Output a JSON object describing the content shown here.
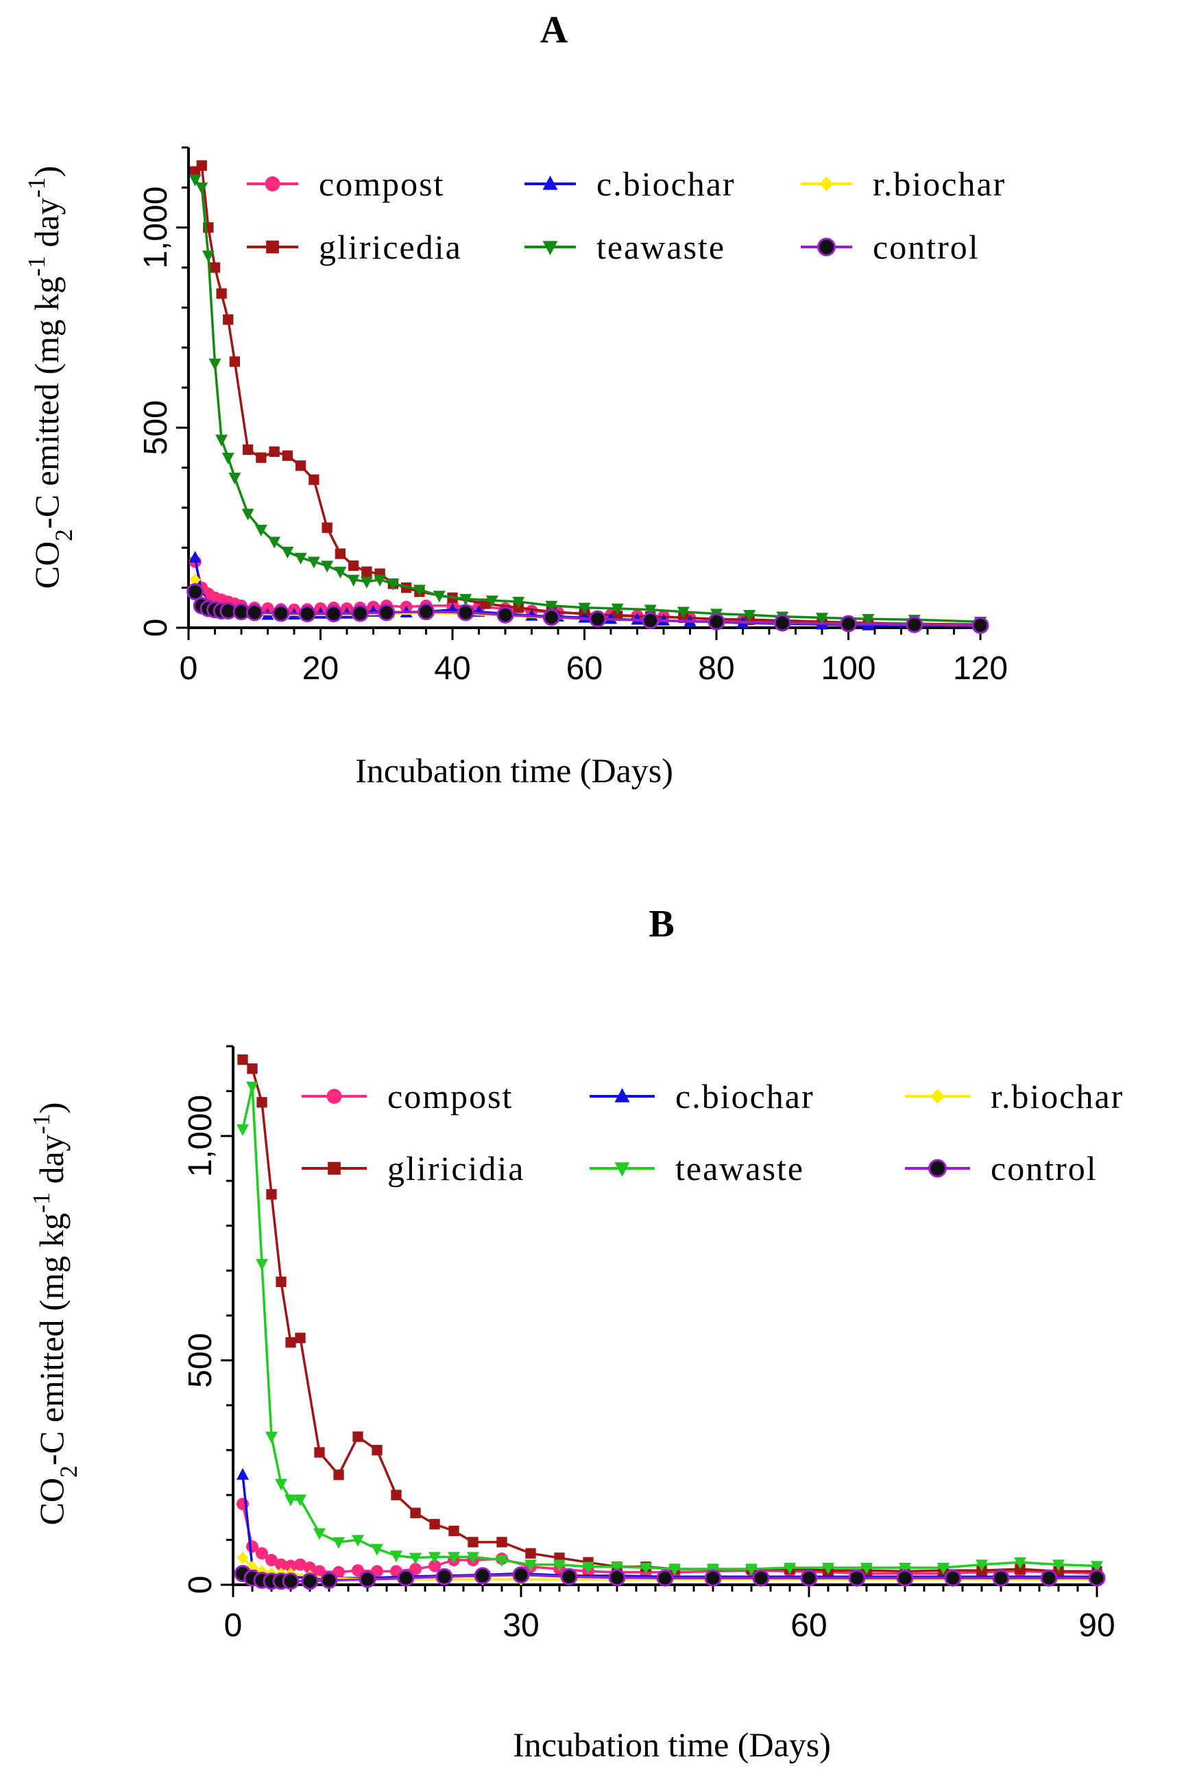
{
  "chart_data": [
    {
      "type": "line",
      "title": "A",
      "xlabel": "Incubation time   (Days)",
      "ylabel": "CO2-C emitted (mg kg-1 day-1)",
      "ylabel_parts": {
        "a": "CO",
        "sub": "2",
        "b": "-C emitted (mg kg",
        "sup1": "-1",
        "c": " day",
        "sup2": "-1",
        "d": ")"
      },
      "xlim": [
        0,
        120
      ],
      "ylim": [
        0,
        1200
      ],
      "xticks": [
        0,
        20,
        40,
        60,
        80,
        100,
        120
      ],
      "xtick_labels": [
        "0",
        "20",
        "40",
        "60",
        "80",
        "100",
        "120"
      ],
      "yticks": [
        0,
        500,
        1000
      ],
      "ytick_labels": [
        "0",
        "500",
        "1,000"
      ],
      "legend_position": "top",
      "series": [
        {
          "name": "compost",
          "color": "#ff2a7f",
          "marker": "circle",
          "x": [
            1,
            2,
            3,
            4,
            5,
            6,
            7,
            8,
            10,
            12,
            14,
            16,
            18,
            20,
            22,
            24,
            26,
            28,
            30,
            33,
            36,
            40,
            44,
            48,
            52,
            56,
            60,
            64,
            68,
            72,
            76,
            80,
            84,
            90,
            96,
            103,
            110,
            120
          ],
          "y": [
            165,
            100,
            85,
            75,
            70,
            65,
            60,
            55,
            50,
            48,
            46,
            45,
            46,
            48,
            50,
            48,
            50,
            52,
            55,
            52,
            55,
            55,
            52,
            48,
            42,
            38,
            35,
            32,
            30,
            28,
            24,
            20,
            18,
            15,
            12,
            10,
            8,
            6
          ]
        },
        {
          "name": "gliricedia",
          "color": "#a01515",
          "marker": "square",
          "x": [
            1,
            2,
            3,
            4,
            5,
            6,
            7,
            9,
            11,
            13,
            15,
            17,
            19,
            21,
            23,
            25,
            27,
            29,
            31,
            33,
            35,
            40,
            45,
            50,
            55,
            60,
            65,
            70,
            75,
            80,
            85,
            90,
            96,
            103,
            110,
            120
          ],
          "y": [
            1140,
            1155,
            1000,
            900,
            835,
            770,
            665,
            445,
            425,
            440,
            430,
            405,
            370,
            250,
            185,
            155,
            140,
            135,
            110,
            100,
            90,
            75,
            60,
            50,
            40,
            35,
            30,
            28,
            25,
            22,
            20,
            18,
            15,
            12,
            10,
            8
          ]
        },
        {
          "name": "c.biochar",
          "color": "#1010e0",
          "marker": "triangle-up",
          "x": [
            1,
            2,
            3,
            4,
            5,
            6,
            7,
            8,
            10,
            12,
            14,
            16,
            18,
            20,
            22,
            24,
            26,
            28,
            30,
            33,
            36,
            40,
            44,
            48,
            52,
            56,
            60,
            64,
            68,
            72,
            76,
            80,
            84,
            90,
            96,
            103,
            110,
            120
          ],
          "y": [
            175,
            80,
            55,
            45,
            40,
            42,
            40,
            38,
            35,
            32,
            32,
            33,
            33,
            35,
            35,
            35,
            38,
            40,
            40,
            38,
            40,
            45,
            40,
            35,
            30,
            28,
            25,
            22,
            20,
            18,
            16,
            14,
            12,
            10,
            8,
            6,
            5,
            4
          ]
        },
        {
          "name": "teawaste",
          "color": "#138a13",
          "marker": "triangle-down",
          "x": [
            1,
            2,
            3,
            4,
            5,
            6,
            7,
            9,
            11,
            13,
            15,
            17,
            19,
            21,
            23,
            25,
            27,
            29,
            31,
            35,
            38,
            42,
            46,
            50,
            55,
            60,
            65,
            70,
            75,
            80,
            85,
            90,
            96,
            103,
            110,
            120
          ],
          "y": [
            1120,
            1100,
            930,
            660,
            470,
            425,
            375,
            285,
            245,
            215,
            190,
            175,
            165,
            155,
            140,
            120,
            115,
            120,
            110,
            95,
            80,
            72,
            68,
            65,
            55,
            50,
            48,
            45,
            40,
            35,
            32,
            28,
            25,
            22,
            20,
            15
          ]
        },
        {
          "name": "r.biochar",
          "color": "#ffee00",
          "marker": "diamond",
          "x": [
            1,
            2,
            3,
            4,
            5,
            6,
            8,
            10,
            14,
            18,
            22,
            26,
            30,
            36,
            42,
            48,
            55,
            62,
            70,
            80,
            90,
            100,
            110,
            120
          ],
          "y": [
            120,
            70,
            50,
            45,
            40,
            40,
            38,
            35,
            33,
            32,
            32,
            33,
            35,
            36,
            35,
            30,
            25,
            22,
            18,
            15,
            12,
            10,
            8,
            6
          ]
        },
        {
          "name": "control",
          "color": "#9b1fc6",
          "marker": "circle-black",
          "x": [
            1,
            2,
            3,
            4,
            5,
            6,
            8,
            10,
            14,
            18,
            22,
            26,
            30,
            36,
            42,
            48,
            55,
            62,
            70,
            80,
            90,
            100,
            110,
            120
          ],
          "y": [
            90,
            55,
            48,
            45,
            42,
            42,
            40,
            38,
            36,
            35,
            35,
            36,
            38,
            40,
            38,
            32,
            26,
            22,
            18,
            15,
            12,
            10,
            8,
            6
          ]
        }
      ]
    },
    {
      "type": "line",
      "title": "B",
      "xlabel": "Incubation time   (Days)",
      "ylabel": "CO2-C emitted (mg kg-1 day-1)",
      "ylabel_parts": {
        "a": "CO",
        "sub": "2",
        "b": "-C emitted (mg kg",
        "sup1": "-1",
        "c": " day",
        "sup2": "-1",
        "d": ")"
      },
      "xlim": [
        0,
        90
      ],
      "ylim": [
        0,
        1200
      ],
      "xticks": [
        0,
        30,
        60,
        90
      ],
      "xtick_labels": [
        "0",
        "30",
        "60",
        "90"
      ],
      "yticks": [
        0,
        500,
        1000
      ],
      "ytick_labels": [
        "0",
        "500",
        "1,000"
      ],
      "legend_position": "top",
      "series": [
        {
          "name": "compost",
          "color": "#ff2a7f",
          "marker": "circle",
          "x": [
            1,
            2,
            3,
            4,
            5,
            6,
            7,
            8,
            9,
            11,
            13,
            15,
            17,
            19,
            21,
            23,
            25,
            28,
            31,
            34,
            37,
            40,
            43,
            46,
            50,
            54,
            58,
            62,
            66,
            70,
            74,
            78,
            82,
            86,
            90
          ],
          "y": [
            180,
            85,
            70,
            55,
            45,
            42,
            45,
            38,
            30,
            28,
            32,
            30,
            30,
            35,
            42,
            55,
            55,
            58,
            40,
            35,
            30,
            28,
            28,
            28,
            30,
            32,
            30,
            28,
            25,
            25,
            25,
            28,
            30,
            28,
            25
          ]
        },
        {
          "name": "gliricidia",
          "color": "#a01515",
          "marker": "square",
          "x": [
            1,
            2,
            3,
            4,
            5,
            6,
            7,
            9,
            11,
            13,
            15,
            17,
            19,
            21,
            23,
            25,
            28,
            31,
            34,
            37,
            40,
            43,
            46,
            50,
            54,
            58,
            62,
            66,
            70,
            74,
            78,
            82,
            86,
            90
          ],
          "y": [
            1170,
            1150,
            1075,
            870,
            675,
            540,
            550,
            295,
            245,
            330,
            300,
            200,
            160,
            135,
            120,
            95,
            95,
            70,
            60,
            50,
            40,
            40,
            35,
            35,
            35,
            35,
            32,
            32,
            30,
            32,
            32,
            35,
            30,
            30
          ]
        },
        {
          "name": "c.biochar",
          "color": "#1010e0",
          "marker": "triangle-up",
          "x": [
            1,
            2,
            3,
            4,
            5,
            6,
            8,
            10,
            14,
            18,
            22,
            26,
            30,
            35,
            40,
            45,
            50,
            55,
            60,
            65,
            70,
            75,
            80,
            85,
            90
          ],
          "y": [
            245,
            40,
            25,
            20,
            18,
            18,
            15,
            15,
            15,
            18,
            20,
            22,
            25,
            20,
            20,
            18,
            18,
            18,
            18,
            18,
            18,
            18,
            18,
            18,
            18
          ]
        },
        {
          "name": "teawaste",
          "color": "#22cc22",
          "marker": "triangle-down",
          "x": [
            1,
            2,
            3,
            4,
            5,
            6,
            7,
            9,
            11,
            13,
            15,
            17,
            19,
            21,
            23,
            25,
            28,
            31,
            34,
            37,
            40,
            43,
            46,
            50,
            54,
            58,
            62,
            66,
            70,
            74,
            78,
            82,
            86,
            90
          ],
          "y": [
            1015,
            1110,
            715,
            330,
            225,
            190,
            190,
            115,
            95,
            100,
            80,
            65,
            60,
            62,
            62,
            62,
            55,
            45,
            45,
            40,
            40,
            38,
            35,
            35,
            35,
            38,
            38,
            38,
            38,
            38,
            45,
            50,
            45,
            42
          ]
        },
        {
          "name": "r.biochar",
          "color": "#ffee00",
          "marker": "diamond",
          "x": [
            1,
            2,
            3,
            4,
            5,
            6,
            8,
            10,
            14,
            18,
            22,
            26,
            30,
            35,
            40,
            45,
            50,
            55,
            60,
            65,
            70,
            75,
            80,
            85,
            90
          ],
          "y": [
            60,
            40,
            30,
            25,
            25,
            25,
            20,
            15,
            12,
            12,
            12,
            12,
            12,
            12,
            12,
            12,
            12,
            12,
            12,
            12,
            12,
            12,
            12,
            12,
            12
          ]
        },
        {
          "name": "control",
          "color": "#9b1fc6",
          "marker": "circle-black",
          "x": [
            1,
            2,
            3,
            4,
            5,
            6,
            8,
            10,
            14,
            18,
            22,
            26,
            30,
            35,
            40,
            45,
            50,
            55,
            60,
            65,
            70,
            75,
            80,
            85,
            90
          ],
          "y": [
            25,
            15,
            10,
            8,
            8,
            8,
            8,
            10,
            12,
            15,
            18,
            20,
            22,
            18,
            16,
            15,
            15,
            15,
            15,
            15,
            15,
            15,
            15,
            15,
            15
          ]
        }
      ]
    }
  ]
}
